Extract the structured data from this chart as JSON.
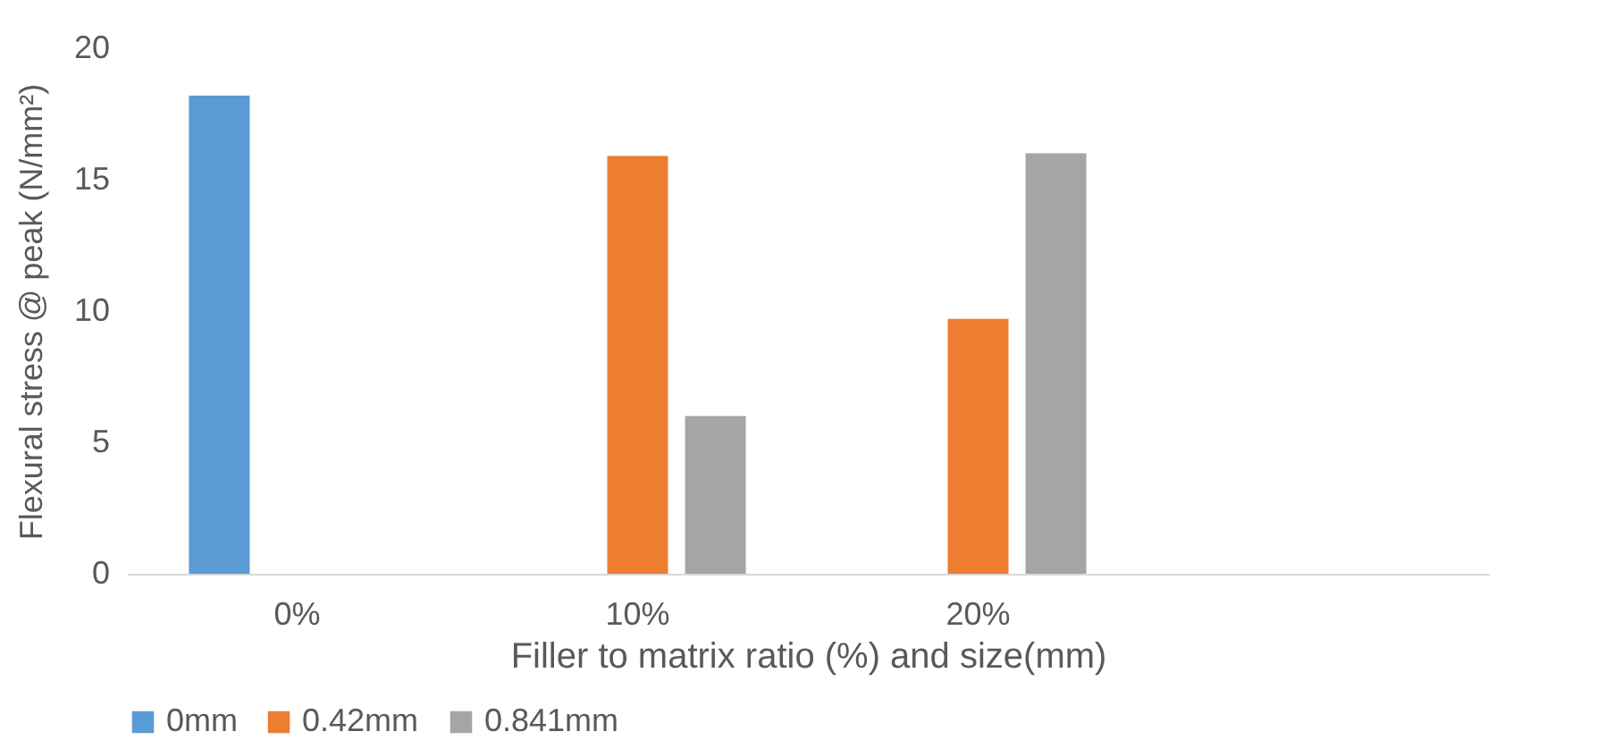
{
  "chart_data": {
    "type": "bar",
    "xlabel": "Filler to matrix ratio (%) and size(mm)",
    "ylabel": "Flexural stress @ peak (N/mm²)",
    "categories": [
      "0%",
      "10%",
      "20%",
      null
    ],
    "series": [
      {
        "name": "0mm",
        "color": "#5b9bd5",
        "values": [
          18.2,
          null,
          null,
          null
        ]
      },
      {
        "name": "0.42mm",
        "color": "#ed7d31",
        "values": [
          null,
          15.9,
          9.7,
          null
        ]
      },
      {
        "name": "0.841mm",
        "color": "#a5a5a5",
        "values": [
          null,
          6.0,
          16.0,
          null
        ]
      }
    ],
    "ylim": [
      0,
      20
    ],
    "yticks": [
      0,
      5,
      10,
      15,
      20
    ],
    "legend": "bottom"
  }
}
